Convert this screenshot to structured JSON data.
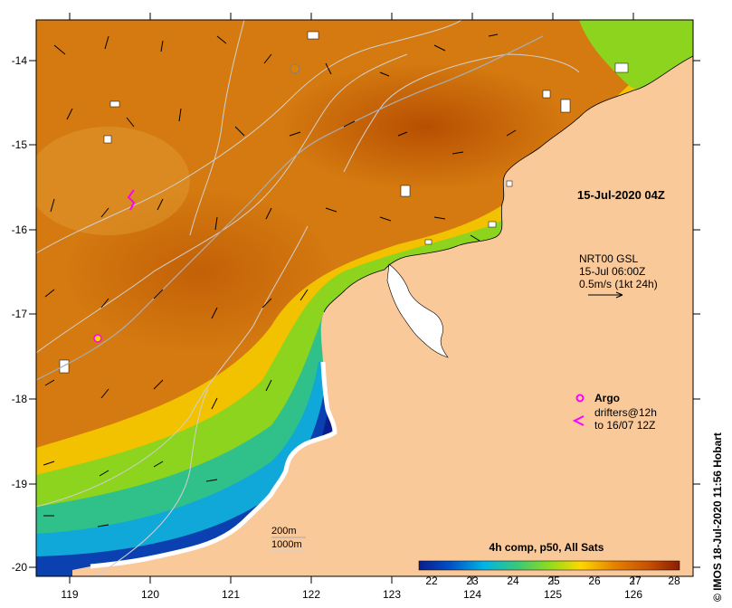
{
  "map": {
    "lon_ticks": [
      "119",
      "120",
      "121",
      "122",
      "123",
      "124",
      "125",
      "126"
    ],
    "lat_ticks": [
      "-14",
      "-15",
      "-16",
      "-17",
      "-18",
      "-19",
      "-20"
    ],
    "date_label": "15-Jul-2020 04Z",
    "current_info": {
      "line1": "NRT00 GSL",
      "line2": "15-Jul 06:00Z",
      "line3": "0.5m/s (1kt 24h)"
    },
    "legend": {
      "argo_label": "Argo",
      "drifters_line1": "drifters@12h",
      "drifters_line2": "to 16/07 12Z"
    },
    "depth_labels": {
      "d200": "200m",
      "d1000": "1000m"
    },
    "colorbar": {
      "title": "4h comp, p50, All Sats",
      "ticks": [
        "22",
        "23",
        "24",
        "25",
        "26",
        "27",
        "28"
      ],
      "stops": [
        "#0a1e8c",
        "#0050c8",
        "#00b4e6",
        "#3cc878",
        "#8cdc1e",
        "#ffd700",
        "#e68200",
        "#c85000",
        "#8c1e00"
      ]
    },
    "credit": "© IMOS 18-Jul-2020 11:56 Hobart",
    "colors": {
      "land": "#f9c99a",
      "contour": "#d0d0d0"
    }
  }
}
